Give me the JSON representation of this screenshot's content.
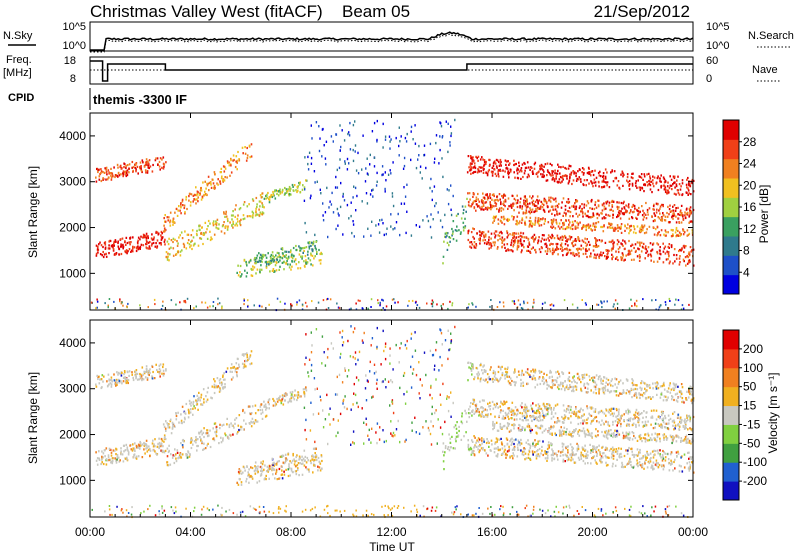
{
  "header": {
    "title": "Christmas Valley West (fitACF)",
    "beam": "Beam 05",
    "date": "21/Sep/2012"
  },
  "labels": {
    "nsky": "N.Sky",
    "nsearch": "N.Search",
    "freq_line1": "Freq.",
    "freq_line2": "[MHz]",
    "nave": "Nave",
    "cpid": "CPID",
    "cpid_value": "themis -3300 IF"
  },
  "chart_data": [
    {
      "type": "line",
      "name": "noise-panel",
      "left_ticks": [
        "10^5",
        "10^0"
      ],
      "right_ticks": [
        "10^5",
        "10^0"
      ],
      "series": [
        {
          "name": "N.Sky"
        },
        {
          "name": "N.Search"
        }
      ]
    },
    {
      "type": "line",
      "name": "freq-nave-panel",
      "left_ticks": [
        "18",
        "8"
      ],
      "right_ticks": [
        "60",
        "0"
      ],
      "series": [
        {
          "name": "Freq.",
          "x_hours": [
            0,
            0.5,
            0.5,
            0.7,
            0.7,
            3.0,
            3.0,
            15.0,
            15.0,
            24
          ],
          "y_mhz": [
            18,
            18,
            8,
            8,
            16.5,
            16.5,
            13.5,
            13.5,
            16.5,
            16.5
          ]
        },
        {
          "name": "Nave"
        }
      ]
    },
    {
      "type": "heatmap",
      "name": "power-panel",
      "ylabel": "Slant Range [km]",
      "yticks": [
        "4000",
        "3000",
        "2000",
        "1000"
      ],
      "ylim": [
        200,
        4500
      ],
      "colorbar": {
        "label": "Power [dB]",
        "ticks": [
          "28",
          "24",
          "20",
          "16",
          "12",
          "8",
          "4"
        ],
        "colors": [
          "#0000e0",
          "#1e50c8",
          "#2f7a8c",
          "#3aa060",
          "#a0d040",
          "#f0c020",
          "#f08020",
          "#f04018",
          "#e00000"
        ]
      }
    },
    {
      "type": "heatmap",
      "name": "velocity-panel",
      "ylabel": "Slant Range [km]",
      "yticks": [
        "4000",
        "3000",
        "2000",
        "1000"
      ],
      "ylim": [
        200,
        4500
      ],
      "colorbar": {
        "label": "Velocity [m s⁻¹]",
        "ticks": [
          "200",
          "100",
          "50",
          "15",
          "-15",
          "-50",
          "-100",
          "-200"
        ],
        "colors": [
          "#1010c0",
          "#2060d0",
          "#40a040",
          "#80d040",
          "#c8c8c0",
          "#f0b020",
          "#f08020",
          "#f04018",
          "#e00000"
        ]
      }
    }
  ],
  "xaxis": {
    "label": "Time UT",
    "ticks": [
      "00:00",
      "04:00",
      "08:00",
      "12:00",
      "16:00",
      "20:00",
      "00:00"
    ]
  }
}
